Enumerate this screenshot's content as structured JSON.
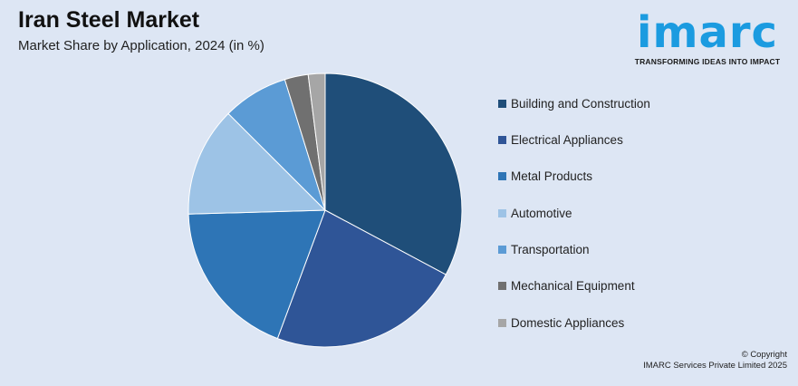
{
  "header": {
    "title": "Iran Steel Market",
    "subtitle": "Market Share by Application, 2024 (in %)"
  },
  "logo": {
    "word": "imarc",
    "tagline": "TRANSFORMING IDEAS INTO IMPACT",
    "color": "#1b9be0"
  },
  "chart_data": {
    "type": "pie",
    "title": "Iran Steel Market",
    "subtitle": "Market Share by Application, 2024 (in %)",
    "legend_position": "right",
    "start_angle_deg": 0,
    "direction": "clockwise",
    "slices": [
      {
        "label": "Building and Construction",
        "value": 33,
        "color": "#1f4e79"
      },
      {
        "label": "Electrical Appliances",
        "value": 23,
        "color": "#2f5597"
      },
      {
        "label": "Metal Products",
        "value": 19,
        "color": "#2e75b6"
      },
      {
        "label": "Automotive",
        "value": 13,
        "color": "#9dc3e6"
      },
      {
        "label": "Transportation",
        "value": 7.8,
        "color": "#5b9bd5"
      },
      {
        "label": "Mechanical Equipment",
        "value": 2.8,
        "color": "#707070"
      },
      {
        "label": "Domestic Appliances",
        "value": 2,
        "color": "#a6a6a6"
      }
    ]
  },
  "footer": {
    "copyright_line1": "© Copyright",
    "copyright_line2": "IMARC Services Private Limited 2025"
  }
}
